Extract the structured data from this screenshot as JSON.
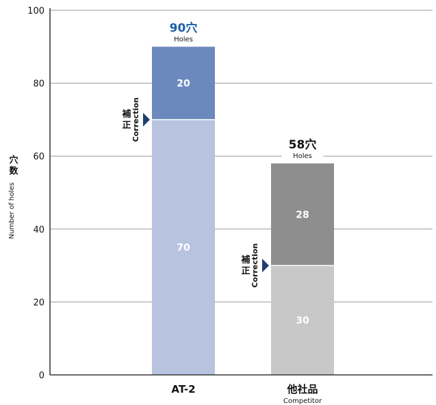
{
  "chart_data": {
    "type": "bar",
    "stacked": true,
    "categories": [
      {
        "label": "AT-2",
        "sublabel": ""
      },
      {
        "label": "他社品",
        "sublabel": "Competitor"
      }
    ],
    "series": [
      {
        "values": [
          70,
          30
        ],
        "colors": [
          "#b8c3e0",
          "#c8c8c8"
        ]
      },
      {
        "values": [
          20,
          28
        ],
        "colors": [
          "#6c89bd",
          "#8e8e8e"
        ]
      }
    ],
    "totals": [
      {
        "value": "90穴",
        "sub": "Holes",
        "color": "#1a5fa6"
      },
      {
        "value": "58穴",
        "sub": "Holes",
        "color": "#111111"
      }
    ],
    "annotation": {
      "jp": [
        "補",
        "正"
      ],
      "en": "Correction",
      "arrow_color": "#1f3f6e"
    },
    "ylabel": {
      "jp": [
        "穴",
        "数"
      ],
      "en": "Number of holes"
    },
    "yticks": [
      0,
      20,
      40,
      60,
      80,
      100
    ],
    "ylim": [
      0,
      100
    ],
    "grid": true
  }
}
